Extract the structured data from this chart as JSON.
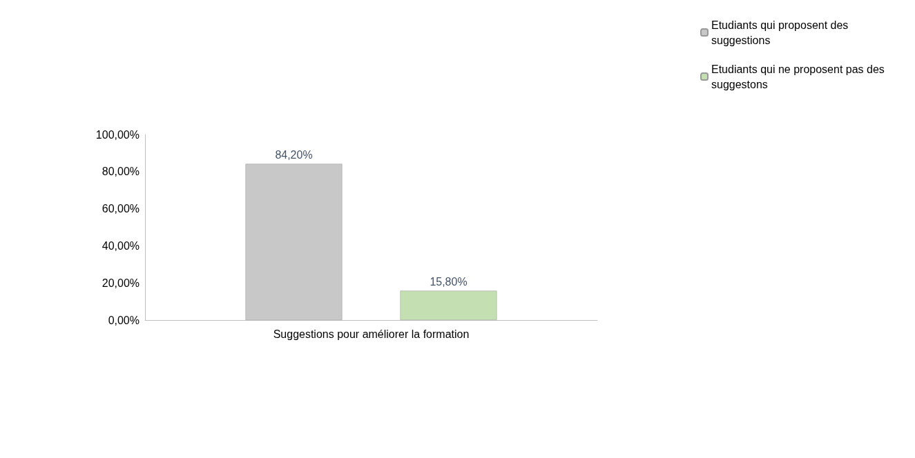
{
  "chart_data": {
    "type": "bar",
    "categories": [
      "Suggestions pour améliorer la formation"
    ],
    "series": [
      {
        "name": "Etudiants qui proposent des suggestions",
        "color": "#c8c8c8",
        "values": [
          84.2
        ],
        "value_labels": [
          "84,20%"
        ]
      },
      {
        "name": "Etudiants qui ne proposent pas des suggestons",
        "color": "#c4e0b2",
        "values": [
          15.8
        ],
        "value_labels": [
          "15,80%"
        ]
      }
    ],
    "ylim": [
      0,
      100
    ],
    "yticks": [
      {
        "value": 0,
        "label": "0,00%"
      },
      {
        "value": 20,
        "label": "20,00%"
      },
      {
        "value": 40,
        "label": "40,00%"
      },
      {
        "value": 60,
        "label": "60,00%"
      },
      {
        "value": 80,
        "label": "80,00%"
      },
      {
        "value": 100,
        "label": "100,00%"
      }
    ],
    "grid": false,
    "legend": "top right"
  }
}
